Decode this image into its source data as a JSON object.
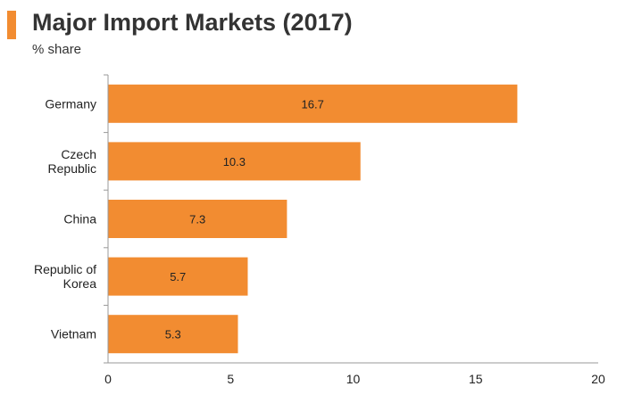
{
  "header": {
    "title": "Major Import Markets (2017)",
    "subtitle": "% share"
  },
  "colors": {
    "bar": "#f28c31",
    "accent": "#f28c31",
    "axis": "#999999"
  },
  "chart_data": {
    "type": "bar",
    "orientation": "horizontal",
    "title": "Major Import Markets (2017)",
    "subtitle": "% share",
    "categories": [
      [
        "Germany"
      ],
      [
        "Czech",
        "Republic"
      ],
      [
        "China"
      ],
      [
        "Republic of",
        "Korea"
      ],
      [
        "Vietnam"
      ]
    ],
    "values": [
      16.7,
      10.3,
      7.3,
      5.7,
      5.3
    ],
    "value_labels": [
      "16.7",
      "10.3",
      "7.3",
      "5.7",
      "5.3"
    ],
    "xlim": [
      0,
      20
    ],
    "xticks": [
      0,
      5,
      10,
      15,
      20
    ],
    "xtick_labels": [
      "0",
      "5",
      "10",
      "15",
      "20"
    ],
    "grid": false,
    "legend": "none"
  }
}
